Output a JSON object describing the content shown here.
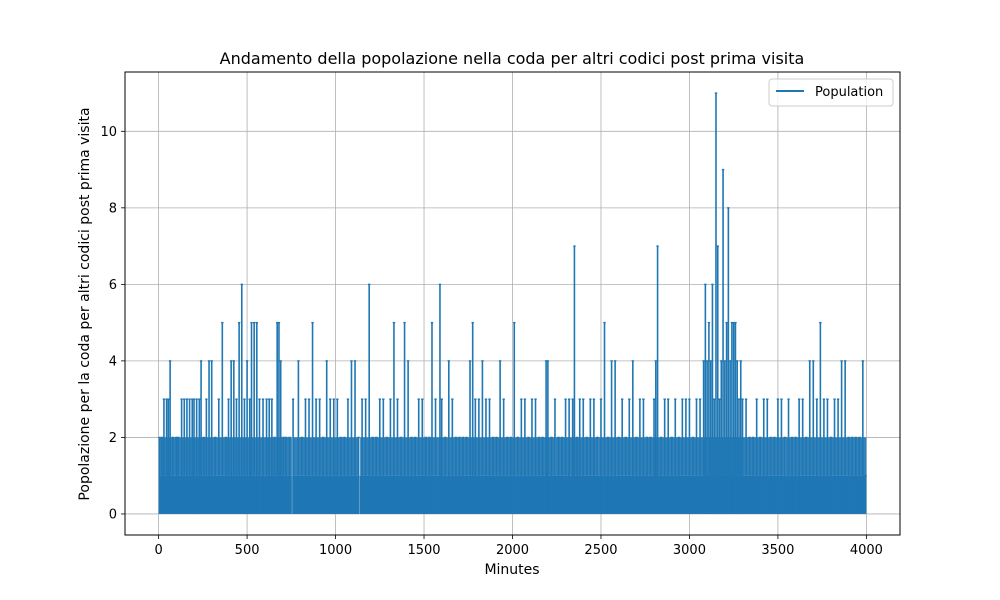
{
  "chart_data": {
    "type": "line",
    "title": "Andamento della popolazione nella coda per altri codici post prima visita",
    "xlabel": "Minutes",
    "ylabel": "Popolazione per la coda per altri codici post prima visita",
    "xlim": [
      -190,
      4190
    ],
    "ylim": [
      -0.55,
      11.55
    ],
    "xticks": [
      0,
      500,
      1000,
      1500,
      2000,
      2500,
      3000,
      3500,
      4000
    ],
    "yticks": [
      0,
      2,
      4,
      6,
      8,
      10
    ],
    "grid": true,
    "legend": {
      "position": "top-right",
      "entries": [
        "Population"
      ]
    },
    "series": [
      {
        "name": "Population",
        "color": "#1f77b4",
        "x_range": [
          0,
          4000
        ],
        "spikes": [
          [
            5,
            2
          ],
          [
            20,
            2
          ],
          [
            30,
            3
          ],
          [
            45,
            3
          ],
          [
            55,
            3
          ],
          [
            65,
            4
          ],
          [
            80,
            2
          ],
          [
            100,
            2
          ],
          [
            110,
            2
          ],
          [
            130,
            3
          ],
          [
            145,
            3
          ],
          [
            160,
            3
          ],
          [
            175,
            3
          ],
          [
            190,
            3
          ],
          [
            200,
            3
          ],
          [
            215,
            3
          ],
          [
            230,
            3
          ],
          [
            240,
            4
          ],
          [
            255,
            2
          ],
          [
            270,
            3
          ],
          [
            285,
            4
          ],
          [
            300,
            4
          ],
          [
            320,
            2
          ],
          [
            340,
            3
          ],
          [
            360,
            5
          ],
          [
            380,
            2
          ],
          [
            395,
            3
          ],
          [
            410,
            4
          ],
          [
            425,
            4
          ],
          [
            440,
            3
          ],
          [
            455,
            5
          ],
          [
            470,
            6
          ],
          [
            485,
            3
          ],
          [
            500,
            4
          ],
          [
            515,
            3
          ],
          [
            525,
            5
          ],
          [
            540,
            5
          ],
          [
            555,
            5
          ],
          [
            570,
            3
          ],
          [
            590,
            3
          ],
          [
            610,
            3
          ],
          [
            625,
            3
          ],
          [
            640,
            3
          ],
          [
            655,
            2
          ],
          [
            670,
            5
          ],
          [
            680,
            5
          ],
          [
            690,
            4
          ],
          [
            705,
            2
          ],
          [
            720,
            2
          ],
          [
            740,
            2
          ],
          [
            760,
            3
          ],
          [
            790,
            4
          ],
          [
            810,
            2
          ],
          [
            830,
            3
          ],
          [
            850,
            3
          ],
          [
            870,
            5
          ],
          [
            890,
            3
          ],
          [
            910,
            3
          ],
          [
            930,
            2
          ],
          [
            950,
            4
          ],
          [
            970,
            3
          ],
          [
            990,
            3
          ],
          [
            1010,
            3
          ],
          [
            1030,
            2
          ],
          [
            1050,
            2
          ],
          [
            1070,
            3
          ],
          [
            1090,
            4
          ],
          [
            1110,
            4
          ],
          [
            1130,
            2
          ],
          [
            1150,
            3
          ],
          [
            1170,
            3
          ],
          [
            1190,
            6
          ],
          [
            1210,
            2
          ],
          [
            1230,
            2
          ],
          [
            1250,
            3
          ],
          [
            1270,
            3
          ],
          [
            1290,
            2
          ],
          [
            1310,
            3
          ],
          [
            1330,
            5
          ],
          [
            1350,
            3
          ],
          [
            1370,
            2
          ],
          [
            1390,
            5
          ],
          [
            1410,
            4
          ],
          [
            1430,
            2
          ],
          [
            1450,
            2
          ],
          [
            1470,
            3
          ],
          [
            1490,
            3
          ],
          [
            1510,
            2
          ],
          [
            1530,
            2
          ],
          [
            1545,
            5
          ],
          [
            1565,
            3
          ],
          [
            1590,
            6
          ],
          [
            1600,
            3
          ],
          [
            1620,
            2
          ],
          [
            1640,
            4
          ],
          [
            1660,
            3
          ],
          [
            1680,
            2
          ],
          [
            1700,
            2
          ],
          [
            1720,
            2
          ],
          [
            1740,
            2
          ],
          [
            1760,
            4
          ],
          [
            1775,
            5
          ],
          [
            1790,
            3
          ],
          [
            1810,
            3
          ],
          [
            1830,
            4
          ],
          [
            1850,
            3
          ],
          [
            1870,
            3
          ],
          [
            1890,
            2
          ],
          [
            1910,
            2
          ],
          [
            1930,
            4
          ],
          [
            1950,
            3
          ],
          [
            1970,
            2
          ],
          [
            1990,
            2
          ],
          [
            2010,
            5
          ],
          [
            2030,
            2
          ],
          [
            2050,
            3
          ],
          [
            2070,
            3
          ],
          [
            2090,
            2
          ],
          [
            2110,
            3
          ],
          [
            2130,
            3
          ],
          [
            2150,
            2
          ],
          [
            2170,
            2
          ],
          [
            2190,
            4
          ],
          [
            2200,
            4
          ],
          [
            2220,
            2
          ],
          [
            2240,
            3
          ],
          [
            2260,
            2
          ],
          [
            2280,
            2
          ],
          [
            2300,
            3
          ],
          [
            2320,
            3
          ],
          [
            2340,
            3
          ],
          [
            2350,
            7
          ],
          [
            2365,
            2
          ],
          [
            2380,
            3
          ],
          [
            2400,
            3
          ],
          [
            2420,
            2
          ],
          [
            2440,
            3
          ],
          [
            2460,
            3
          ],
          [
            2480,
            2
          ],
          [
            2500,
            3
          ],
          [
            2520,
            5
          ],
          [
            2540,
            2
          ],
          [
            2560,
            4
          ],
          [
            2580,
            4
          ],
          [
            2600,
            2
          ],
          [
            2620,
            3
          ],
          [
            2640,
            2
          ],
          [
            2660,
            3
          ],
          [
            2680,
            4
          ],
          [
            2700,
            2
          ],
          [
            2720,
            3
          ],
          [
            2740,
            3
          ],
          [
            2760,
            2
          ],
          [
            2780,
            2
          ],
          [
            2800,
            3
          ],
          [
            2810,
            4
          ],
          [
            2820,
            7
          ],
          [
            2840,
            2
          ],
          [
            2860,
            3
          ],
          [
            2880,
            3
          ],
          [
            2900,
            2
          ],
          [
            2920,
            3
          ],
          [
            2940,
            2
          ],
          [
            2960,
            3
          ],
          [
            2980,
            3
          ],
          [
            3000,
            3
          ],
          [
            3020,
            2
          ],
          [
            3040,
            3
          ],
          [
            3060,
            3
          ],
          [
            3080,
            4
          ],
          [
            3090,
            6
          ],
          [
            3100,
            4
          ],
          [
            3110,
            5
          ],
          [
            3120,
            4
          ],
          [
            3130,
            6
          ],
          [
            3140,
            3
          ],
          [
            3150,
            11
          ],
          [
            3160,
            7
          ],
          [
            3170,
            3
          ],
          [
            3180,
            4
          ],
          [
            3190,
            9
          ],
          [
            3200,
            4
          ],
          [
            3210,
            5
          ],
          [
            3220,
            8
          ],
          [
            3230,
            4
          ],
          [
            3240,
            5
          ],
          [
            3250,
            5
          ],
          [
            3260,
            5
          ],
          [
            3270,
            4
          ],
          [
            3280,
            3
          ],
          [
            3290,
            4
          ],
          [
            3300,
            3
          ],
          [
            3320,
            3
          ],
          [
            3340,
            2
          ],
          [
            3360,
            2
          ],
          [
            3380,
            3
          ],
          [
            3400,
            2
          ],
          [
            3420,
            3
          ],
          [
            3440,
            3
          ],
          [
            3460,
            2
          ],
          [
            3480,
            2
          ],
          [
            3500,
            3
          ],
          [
            3520,
            3
          ],
          [
            3540,
            2
          ],
          [
            3560,
            3
          ],
          [
            3580,
            2
          ],
          [
            3600,
            2
          ],
          [
            3620,
            3
          ],
          [
            3640,
            3
          ],
          [
            3660,
            2
          ],
          [
            3680,
            4
          ],
          [
            3700,
            4
          ],
          [
            3720,
            3
          ],
          [
            3740,
            5
          ],
          [
            3760,
            3
          ],
          [
            3780,
            3
          ],
          [
            3800,
            2
          ],
          [
            3820,
            3
          ],
          [
            3840,
            3
          ],
          [
            3860,
            4
          ],
          [
            3880,
            4
          ],
          [
            3900,
            2
          ],
          [
            3920,
            2
          ],
          [
            3940,
            2
          ],
          [
            3960,
            2
          ],
          [
            3980,
            4
          ],
          [
            3995,
            1
          ]
        ],
        "gaps": [
          755,
          1135,
          1970,
          2240,
          2480,
          3100,
          3460,
          3540
        ]
      }
    ]
  }
}
